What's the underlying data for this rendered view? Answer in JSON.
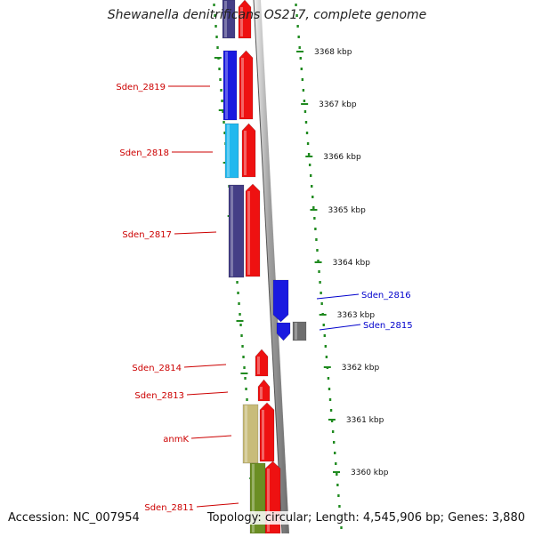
{
  "title": "Shewanella denitrificans OS217, complete genome",
  "accession": "Accession: NC_007954",
  "topology": "Topology: circular; Length: 4,545,906 bp; Genes: 3,880",
  "colors": {
    "red": "#ee1111",
    "blue": "#1a1ae0",
    "cyan": "#22b8ee",
    "navy": "#443e86",
    "olive": "#6b8e23",
    "khaki": "#c8bc7a",
    "gray": "#6e6e6e",
    "label_red": "#cc0000",
    "label_blue": "#0000cc",
    "tick": "#1f8a1f"
  },
  "ruler": {
    "unit": "kbp",
    "labels": [
      "3368 kbp",
      "3367 kbp",
      "3366 kbp",
      "3365 kbp",
      "3364 kbp",
      "3363 kbp",
      "3362 kbp",
      "3361 kbp",
      "3360 kbp"
    ]
  },
  "genes": [
    {
      "name": "Sden_2819",
      "strand": "minus"
    },
    {
      "name": "Sden_2818",
      "strand": "minus"
    },
    {
      "name": "Sden_2817",
      "strand": "minus"
    },
    {
      "name": "Sden_2816",
      "strand": "plus"
    },
    {
      "name": "Sden_2815",
      "strand": "plus"
    },
    {
      "name": "Sden_2814",
      "strand": "minus"
    },
    {
      "name": "Sden_2813",
      "strand": "minus"
    },
    {
      "name": "anmK",
      "strand": "minus"
    },
    {
      "name": "Sden_2811",
      "strand": "minus"
    }
  ]
}
